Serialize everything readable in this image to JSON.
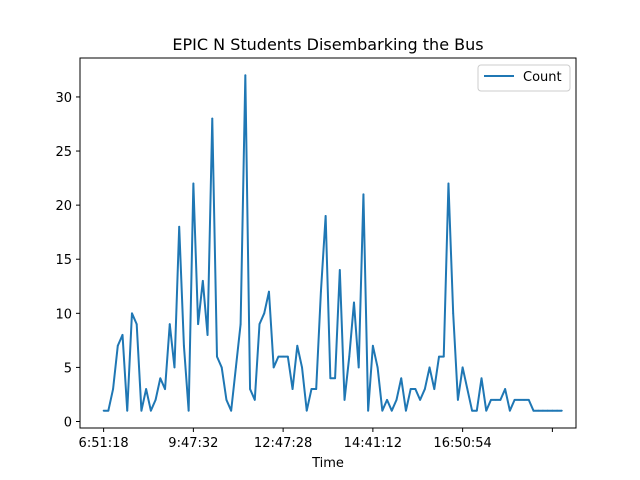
{
  "chart_data": {
    "type": "line",
    "title": "EPIC N Students Disembarking the Bus",
    "xlabel": "Time",
    "ylabel": "",
    "ylim": [
      -0.6,
      33.6
    ],
    "xlim": [
      -5,
      100
    ],
    "x_tick_positions": [
      0,
      19,
      38,
      57,
      76,
      95
    ],
    "x_tick_labels": [
      "6:51:18",
      "9:47:32",
      "12:47:28",
      "14:41:12",
      "16:50:54",
      ""
    ],
    "y_ticks": [
      0,
      5,
      10,
      15,
      20,
      25,
      30
    ],
    "grid": false,
    "legend_position": "top-right",
    "series": [
      {
        "name": "Count",
        "color": "#1f77b4",
        "values": [
          1,
          1,
          3,
          7,
          8,
          1,
          10,
          9,
          1,
          3,
          1,
          2,
          4,
          3,
          9,
          5,
          18,
          7,
          1,
          22,
          9,
          13,
          8,
          28,
          6,
          5,
          2,
          1,
          5,
          9,
          32,
          3,
          2,
          9,
          10,
          12,
          5,
          6,
          6,
          6,
          3,
          7,
          5,
          1,
          3,
          3,
          12,
          19,
          4,
          4,
          14,
          2,
          6,
          11,
          5,
          21,
          1,
          7,
          5,
          1,
          2,
          1,
          2,
          4,
          1,
          3,
          3,
          2,
          3,
          5,
          3,
          6,
          6,
          22,
          10,
          2,
          5,
          3,
          1,
          1,
          4,
          1,
          2,
          2,
          2,
          3,
          1,
          2,
          2,
          2,
          2,
          1,
          1,
          1,
          1,
          1,
          1,
          1
        ]
      }
    ]
  }
}
